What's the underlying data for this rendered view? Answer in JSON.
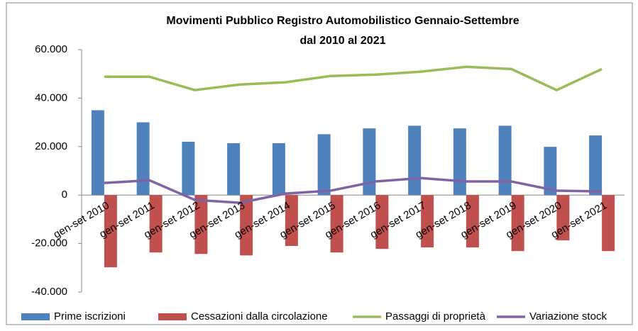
{
  "chart_data": {
    "type": "bar-line",
    "title": [
      "Movimenti Pubblico Registro Automobilistico Gennaio-Settembre",
      "dal 2010 al 2021"
    ],
    "categories": [
      "gen-set 2010",
      "gen-set 2011",
      "gen-set 2012",
      "gen-set 2013",
      "gen-set 2014",
      "gen-set 2015",
      "gen-set 2016",
      "gen-set 2017",
      "gen-set 2018",
      "gen-set 2019",
      "gen-set 2020",
      "gen-set 2021"
    ],
    "series": [
      {
        "name": "Prime iscrizioni",
        "type": "bar",
        "color": "#4f81bd",
        "values": [
          35000,
          30000,
          22000,
          21400,
          21400,
          25100,
          27500,
          28600,
          27500,
          28600,
          19900,
          24600
        ]
      },
      {
        "name": "Cessazioni dalla circolazione",
        "type": "bar",
        "color": "#c0504d",
        "values": [
          -29800,
          -23700,
          -24300,
          -24900,
          -21000,
          -23700,
          -22200,
          -21600,
          -21600,
          -23100,
          -18700,
          -23100
        ]
      },
      {
        "name": "Passaggi di proprietà",
        "type": "line",
        "color": "#9bbb59",
        "values": [
          48800,
          48800,
          43300,
          45600,
          46500,
          49100,
          49700,
          50900,
          52900,
          52000,
          43300,
          52000
        ]
      },
      {
        "name": "Variazione stock",
        "type": "line",
        "color": "#8064a2",
        "values": [
          5000,
          6100,
          -2000,
          -3200,
          600,
          1800,
          5600,
          7000,
          5600,
          5600,
          1800,
          1500
        ]
      }
    ],
    "ylim": [
      -40000,
      60000
    ],
    "yticks": [
      {
        "value": -40000,
        "label": "-40.000"
      },
      {
        "value": -20000,
        "label": "-20.000"
      },
      0,
      {
        "value": 20000,
        "label": "20.000"
      },
      {
        "value": 40000,
        "label": "40.000"
      },
      {
        "value": 60000,
        "label": "60.000"
      }
    ],
    "legend": "bottom"
  }
}
